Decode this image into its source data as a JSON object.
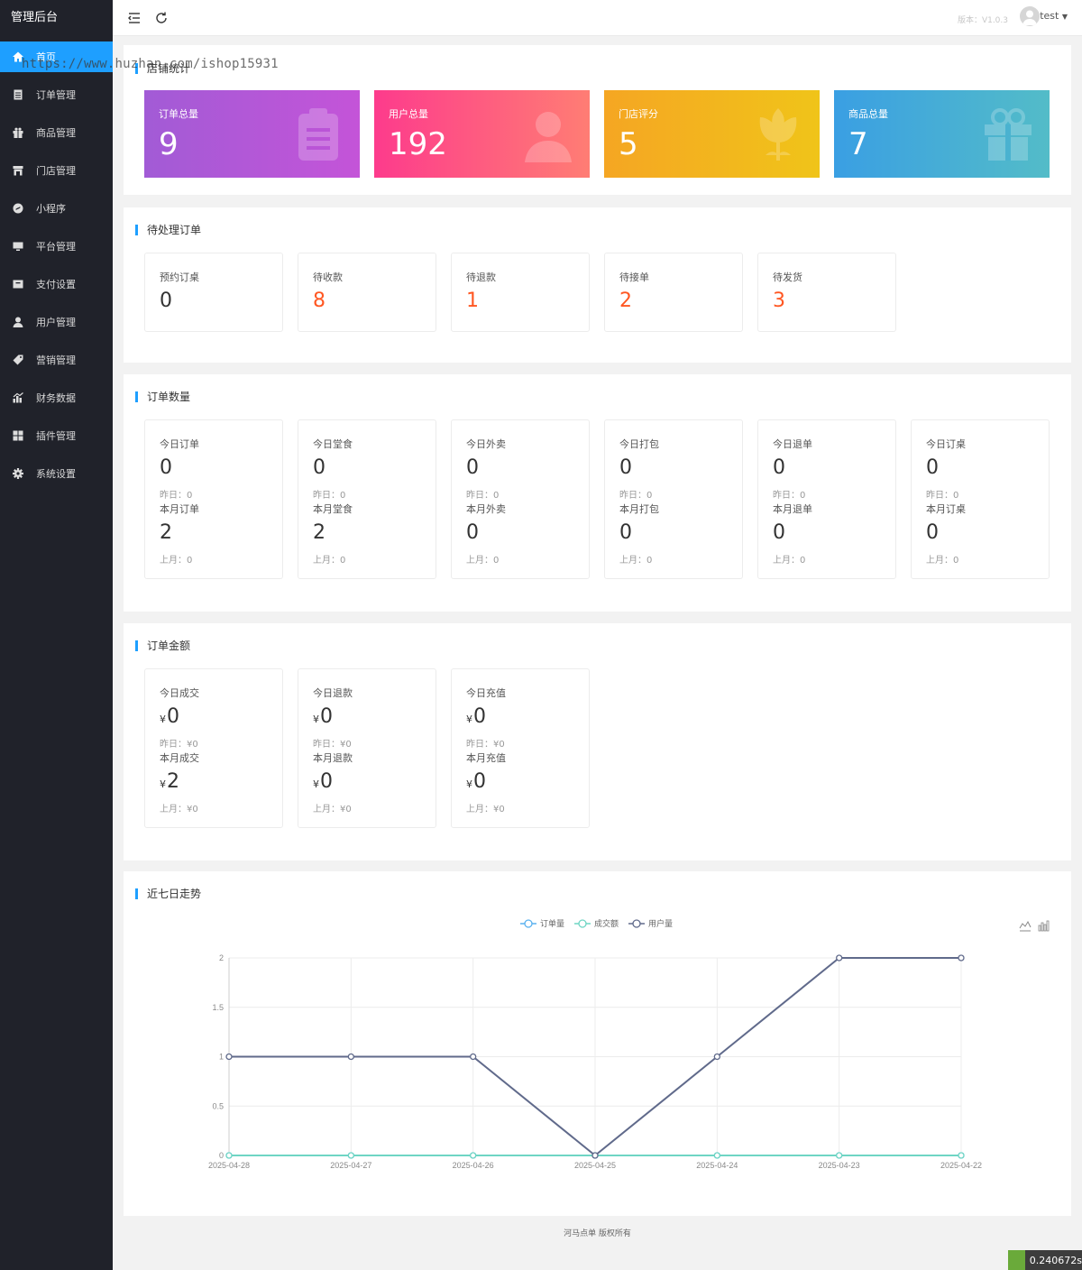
{
  "brand": "管理后台",
  "watermark": "https://www.huzhan.com/ishop15931",
  "sidebar": {
    "items": [
      {
        "label": "首页",
        "icon": "home-icon"
      },
      {
        "label": "订单管理",
        "icon": "order-icon"
      },
      {
        "label": "商品管理",
        "icon": "goods-icon"
      },
      {
        "label": "门店管理",
        "icon": "store-icon"
      },
      {
        "label": "小程序",
        "icon": "miniapp-icon"
      },
      {
        "label": "平台管理",
        "icon": "platform-icon"
      },
      {
        "label": "支付设置",
        "icon": "payment-icon"
      },
      {
        "label": "用户管理",
        "icon": "user-icon"
      },
      {
        "label": "营销管理",
        "icon": "tag-icon"
      },
      {
        "label": "财务数据",
        "icon": "finance-icon"
      },
      {
        "label": "插件管理",
        "icon": "plugin-icon"
      },
      {
        "label": "系统设置",
        "icon": "gear-icon"
      }
    ]
  },
  "header": {
    "version": "版本：V1.0.3",
    "username": "test"
  },
  "store_stats": {
    "title": "店铺统计",
    "cards": [
      {
        "label": "订单总量",
        "value": "9",
        "gradient": [
          "#a25bd6",
          "#c454d8"
        ],
        "icon": "clipboard-icon"
      },
      {
        "label": "用户总量",
        "value": "192",
        "gradient": [
          "#fd3b8c",
          "#ff7d74"
        ],
        "icon": "user-icon"
      },
      {
        "label": "门店评分",
        "value": "5",
        "gradient": [
          "#f5a623",
          "#f0c419"
        ],
        "icon": "flower-icon"
      },
      {
        "label": "商品总量",
        "value": "7",
        "gradient": [
          "#3a9fe3",
          "#53bcc8"
        ],
        "icon": "gift-icon"
      }
    ]
  },
  "pending": {
    "title": "待处理订单",
    "items": [
      {
        "label": "预约订桌",
        "value": "0",
        "red": false
      },
      {
        "label": "待收款",
        "value": "8",
        "red": true
      },
      {
        "label": "待退款",
        "value": "1",
        "red": true
      },
      {
        "label": "待接单",
        "value": "2",
        "red": true
      },
      {
        "label": "待发货",
        "value": "3",
        "red": true
      }
    ]
  },
  "order_count": {
    "title": "订单数量",
    "items": [
      {
        "label": "今日订单",
        "value": "0",
        "yesterday": "昨日：0",
        "month_label": "本月订单",
        "month_value": "2",
        "last_month": "上月：0"
      },
      {
        "label": "今日堂食",
        "value": "0",
        "yesterday": "昨日：0",
        "month_label": "本月堂食",
        "month_value": "2",
        "last_month": "上月：0"
      },
      {
        "label": "今日外卖",
        "value": "0",
        "yesterday": "昨日：0",
        "month_label": "本月外卖",
        "month_value": "0",
        "last_month": "上月：0"
      },
      {
        "label": "今日打包",
        "value": "0",
        "yesterday": "昨日：0",
        "month_label": "本月打包",
        "month_value": "0",
        "last_month": "上月：0"
      },
      {
        "label": "今日退单",
        "value": "0",
        "yesterday": "昨日：0",
        "month_label": "本月退单",
        "month_value": "0",
        "last_month": "上月：0"
      },
      {
        "label": "今日订桌",
        "value": "0",
        "yesterday": "昨日：0",
        "month_label": "本月订桌",
        "month_value": "0",
        "last_month": "上月：0"
      }
    ]
  },
  "order_amount": {
    "title": "订单金额",
    "currency": "¥",
    "items": [
      {
        "label": "今日成交",
        "value": "0",
        "yesterday": "昨日：¥0",
        "month_label": "本月成交",
        "month_value": "2",
        "last_month": "上月：¥0"
      },
      {
        "label": "今日退款",
        "value": "0",
        "yesterday": "昨日：¥0",
        "month_label": "本月退款",
        "month_value": "0",
        "last_month": "上月：¥0"
      },
      {
        "label": "今日充值",
        "value": "0",
        "yesterday": "昨日：¥0",
        "month_label": "本月充值",
        "month_value": "0",
        "last_month": "上月：¥0"
      }
    ]
  },
  "trend": {
    "title": "近七日走势"
  },
  "chart_data": {
    "type": "line",
    "categories": [
      "2025-04-28",
      "2025-04-27",
      "2025-04-26",
      "2025-04-25",
      "2025-04-24",
      "2025-04-23",
      "2025-04-22"
    ],
    "series": [
      {
        "name": "订单量",
        "values": [
          0,
          0,
          0,
          0,
          0,
          0,
          0
        ],
        "color": "#5ab1ef"
      },
      {
        "name": "成交额",
        "values": [
          0,
          0,
          0,
          0,
          0,
          0,
          0
        ],
        "color": "#6fd5c4"
      },
      {
        "name": "用户量",
        "values": [
          1,
          1,
          1,
          0,
          1,
          2,
          2
        ],
        "color": "#606a8b"
      }
    ],
    "ylim": [
      0,
      2
    ],
    "yticks": [
      "0",
      "0.5",
      "1",
      "1.5",
      "2"
    ],
    "legend": "top-center",
    "grid": true
  },
  "footer": "河马点单 版权所有",
  "timer": "0.240672s"
}
